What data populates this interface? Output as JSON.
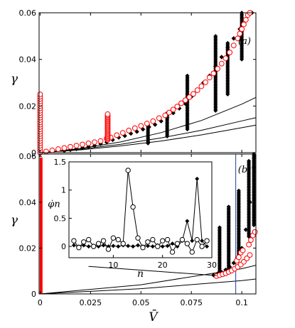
{
  "chart_data": {
    "type": "scatter",
    "xlabel": "V̄",
    "x_ticks": [
      "0",
      "0.025",
      "0.05",
      "0.075",
      "0.1"
    ],
    "x_tick_values": [
      0,
      0.025,
      0.05,
      0.075,
      0.1
    ],
    "xlim": [
      -0.0005,
      0.107
    ],
    "colors": {
      "red": "#ff0000",
      "black": "#000000",
      "vline": "#1f3f99"
    },
    "panels": [
      {
        "tag": "(a)",
        "ylabel": "γ",
        "ylim": [
          0,
          0.06
        ],
        "y_ticks": [
          "0",
          "0.02",
          "0.04",
          "0.06"
        ],
        "y_tick_values": [
          0,
          0.02,
          0.04,
          0.06
        ],
        "curves": [
          {
            "x": [
              0,
              0.02,
              0.04,
              0.06,
              0.08,
              0.1,
              0.107
            ],
            "y": [
              0,
              0.0018,
              0.0046,
              0.0086,
              0.0138,
              0.0208,
              0.0237
            ]
          },
          {
            "x": [
              0,
              0.02,
              0.04,
              0.06,
              0.08,
              0.1,
              0.107
            ],
            "y": [
              0,
              0.0015,
              0.0036,
              0.0063,
              0.0096,
              0.0136,
              0.015
            ]
          },
          {
            "x": [
              0,
              0.02,
              0.04,
              0.06,
              0.08,
              0.1,
              0.107
            ],
            "y": [
              0,
              0.0012,
              0.0029,
              0.005,
              0.0076,
              0.0107,
              0.0118
            ]
          }
        ],
        "red_circles": {
          "x": [
            0,
            0,
            0,
            0,
            0,
            0,
            0,
            0,
            0,
            0,
            0,
            0,
            0,
            0,
            0,
            0,
            0,
            0,
            0,
            0,
            0,
            0,
            0,
            0,
            0,
            0,
            0.003,
            0.006,
            0.009,
            0.012,
            0.015,
            0.018,
            0.021,
            0.024,
            0.027,
            0.03,
            0.033,
            0.035,
            0.038,
            0.041,
            0.044,
            0.047,
            0.05,
            0.053,
            0.056,
            0.059,
            0.062,
            0.064,
            0.066,
            0.068,
            0.07,
            0.072,
            0.074,
            0.076,
            0.078,
            0.08,
            0.082,
            0.084,
            0.086,
            0.088,
            0.09,
            0.092,
            0.094,
            0.096,
            0.098,
            0.099,
            0.1,
            0.101,
            0.102,
            0.103,
            0.104
          ],
          "y": [
            0,
            0.001,
            0.002,
            0.003,
            0.004,
            0.005,
            0.006,
            0.007,
            0.008,
            0.009,
            0.01,
            0.011,
            0.012,
            0.013,
            0.014,
            0.015,
            0.016,
            0.017,
            0.018,
            0.019,
            0.02,
            0.021,
            0.022,
            0.023,
            0.024,
            0.025,
            0.0005,
            0.001,
            0.0015,
            0.002,
            0.0025,
            0.003,
            0.0035,
            0.004,
            0.0045,
            0.005,
            0.006,
            0.0065,
            0.0075,
            0.0085,
            0.0095,
            0.0105,
            0.0115,
            0.0125,
            0.0135,
            0.0148,
            0.016,
            0.0172,
            0.0185,
            0.0198,
            0.0212,
            0.0225,
            0.0238,
            0.0252,
            0.0268,
            0.0285,
            0.0302,
            0.0322,
            0.034,
            0.036,
            0.0382,
            0.0405,
            0.043,
            0.046,
            0.049,
            0.051,
            0.053,
            0.055,
            0.057,
            0.059,
            0.06
          ]
        },
        "red_spike": {
          "x": 0.0335,
          "y_min": 0.0055,
          "y_max": 0.0165
        },
        "black_diamonds": {
          "x": [
            0.012,
            0.015,
            0.018,
            0.021,
            0.024,
            0.027,
            0.03,
            0.033,
            0.036,
            0.039,
            0.042,
            0.045,
            0.048,
            0.051,
            0.054,
            0.057,
            0.06,
            0.063,
            0.066,
            0.069,
            0.072,
            0.075,
            0.078,
            0.081,
            0.084,
            0.087,
            0.09,
            0.093,
            0.096,
            0.099,
            0.102,
            0.105
          ],
          "y": [
            0.0008,
            0.0012,
            0.0016,
            0.002,
            0.0025,
            0.003,
            0.0038,
            0.0045,
            0.0055,
            0.0065,
            0.0072,
            0.0082,
            0.009,
            0.01,
            0.011,
            0.012,
            0.0135,
            0.015,
            0.017,
            0.019,
            0.021,
            0.024,
            0.027,
            0.03,
            0.033,
            0.037,
            0.041,
            0.045,
            0.049,
            0.053,
            0.057,
            0.06
          ]
        },
        "black_columns": [
          {
            "x": 0.0535,
            "y_min": 0.004,
            "y_max": 0.012
          },
          {
            "x": 0.063,
            "y_min": 0.007,
            "y_max": 0.017
          },
          {
            "x": 0.073,
            "y_min": 0.01,
            "y_max": 0.033
          },
          {
            "x": 0.087,
            "y_min": 0.018,
            "y_max": 0.05
          },
          {
            "x": 0.093,
            "y_min": 0.025,
            "y_max": 0.047
          },
          {
            "x": 0.1,
            "y_min": 0.04,
            "y_max": 0.06
          }
        ]
      },
      {
        "tag": "(b)",
        "ylabel": "γ",
        "ylim": [
          0,
          0.061
        ],
        "y_ticks": [
          "0",
          "0.02",
          "0.04",
          "0.06"
        ],
        "y_tick_values": [
          0,
          0.02,
          0.04,
          0.06
        ],
        "vline_x": 0.097,
        "curves": [
          {
            "x": [
              0,
              0.05,
              0.1,
              0.107
            ],
            "y": [
              0,
              0.004,
              0.011,
              0.0125
            ]
          },
          {
            "x": [
              0,
              0.05,
              0.1,
              0.107
            ],
            "y": [
              0,
              0.0023,
              0.0058,
              0.0065
            ]
          }
        ],
        "red_column": {
          "x": 0.0005,
          "y_min": 0,
          "y_max": 0.0595
        },
        "red_circles": {
          "x": [
            0.0875,
            0.089,
            0.0905,
            0.092,
            0.0935,
            0.095,
            0.0965,
            0.098,
            0.0995,
            0.101,
            0.1025,
            0.104,
            0.0975,
            0.0985,
            0.0995,
            0.1005,
            0.1035,
            0.1045,
            0.1055,
            0.1065
          ],
          "y": [
            0.0078,
            0.0082,
            0.0086,
            0.009,
            0.0096,
            0.0102,
            0.011,
            0.0118,
            0.0128,
            0.014,
            0.0155,
            0.017,
            0.0145,
            0.016,
            0.018,
            0.019,
            0.0215,
            0.0235,
            0.0255,
            0.027
          ]
        },
        "black_diamonds": {
          "x": [
            0.086,
            0.088,
            0.09,
            0.092,
            0.094,
            0.096,
            0.098,
            0.1,
            0.102,
            0.104,
            0.106
          ],
          "y": [
            0.0082,
            0.0088,
            0.0095,
            0.0105,
            0.0118,
            0.0135,
            0.016,
            0.02,
            0.028,
            0.04,
            0.055
          ]
        },
        "black_columns": [
          {
            "x": 0.089,
            "y_min": 0.009,
            "y_max": 0.029
          },
          {
            "x": 0.0935,
            "y_min": 0.011,
            "y_max": 0.038
          },
          {
            "x": 0.0985,
            "y_min": 0.017,
            "y_max": 0.045
          },
          {
            "x": 0.1035,
            "y_min": 0.025,
            "y_max": 0.058
          },
          {
            "x": 0.106,
            "y_min": 0.03,
            "y_max": 0.061
          }
        ],
        "connector": {
          "x_from": 0.024,
          "y_from": 0.012,
          "x_to": 0.0875,
          "y_to": 0.008
        },
        "inset": {
          "xlabel": "n",
          "ylabel": "φ̇n",
          "xlim": [
            1,
            30
          ],
          "ylim": [
            -0.2,
            1.5
          ],
          "x_ticks": [
            "10",
            "20",
            "30"
          ],
          "x_tick_values": [
            10,
            20,
            30
          ],
          "y_ticks": [
            "0",
            "0.5",
            "1",
            "1.5"
          ],
          "y_tick_values": [
            0,
            0.5,
            1,
            1.5
          ],
          "circles": {
            "n": [
              2,
              3,
              4,
              5,
              6,
              7,
              8,
              9,
              10,
              11,
              12,
              13,
              14,
              15,
              16,
              17,
              18,
              19,
              20,
              21,
              22,
              23,
              24,
              25,
              26,
              27,
              28,
              29
            ],
            "v": [
              0.1,
              -0.02,
              0.08,
              0.12,
              0.0,
              0.05,
              0.1,
              -0.05,
              0.15,
              0.12,
              0.05,
              1.35,
              0.7,
              0.15,
              -0.02,
              0.08,
              0.12,
              0.0,
              0.1,
              0.12,
              -0.1,
              0.05,
              0.12,
              0.05,
              -0.1,
              0.12,
              0.0,
              0.1
            ]
          },
          "diamonds": {
            "n": [
              2,
              3,
              4,
              5,
              6,
              7,
              8,
              9,
              10,
              11,
              12,
              13,
              14,
              15,
              16,
              17,
              18,
              19,
              20,
              21,
              22,
              23,
              24,
              25,
              26,
              27,
              28,
              29
            ],
            "v": [
              0.02,
              0.0,
              0.02,
              0.0,
              0.01,
              0.0,
              0.02,
              0.0,
              0.01,
              0.0,
              0.02,
              0.01,
              0.0,
              0.02,
              0.0,
              0.01,
              0.0,
              0.02,
              0.0,
              0.01,
              0.05,
              0.0,
              0.1,
              0.45,
              0.1,
              1.2,
              0.1,
              0.0
            ]
          }
        }
      }
    ]
  }
}
